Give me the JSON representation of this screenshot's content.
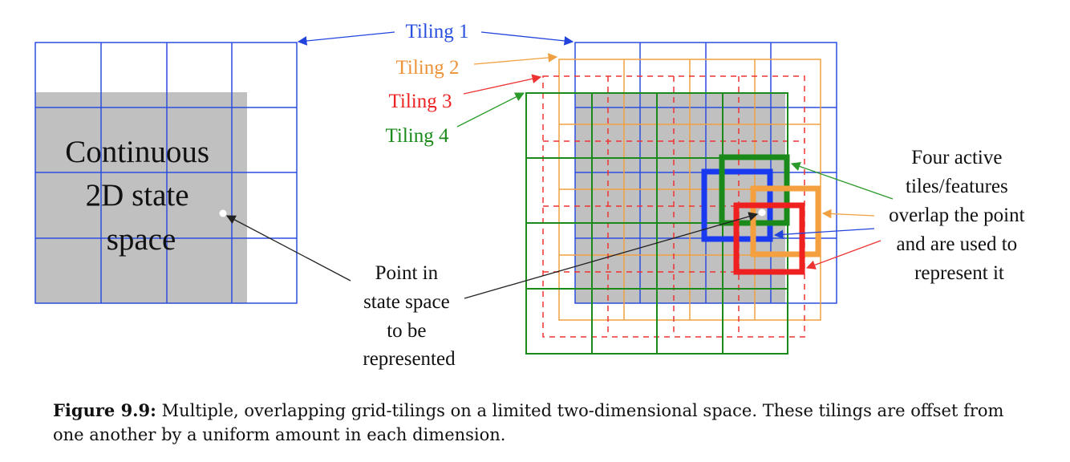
{
  "labels": {
    "tiling1": "Tiling 1",
    "tiling2": "Tiling 2",
    "tiling3": "Tiling 3",
    "tiling4": "Tiling 4",
    "continuous": [
      "Continuous",
      "2D state",
      "space"
    ],
    "point": [
      "Point in",
      "state space",
      "to be",
      "represented"
    ],
    "active": [
      "Four active",
      "tiles/features",
      "overlap the point",
      "and are used to",
      "represent it"
    ]
  },
  "caption": {
    "figure_label": "Figure 9.9:",
    "text": "Multiple, overlapping grid-tilings on a limited two-dimensional space. These tilings are offset from one another by a uniform amount in each dimension."
  },
  "colors": {
    "tiling1": "#1f3fe0",
    "tiling2": "#f0a040",
    "tiling3": "#ee2222",
    "tiling4": "#1a8a1a",
    "state_space": "#c0c0c0"
  }
}
